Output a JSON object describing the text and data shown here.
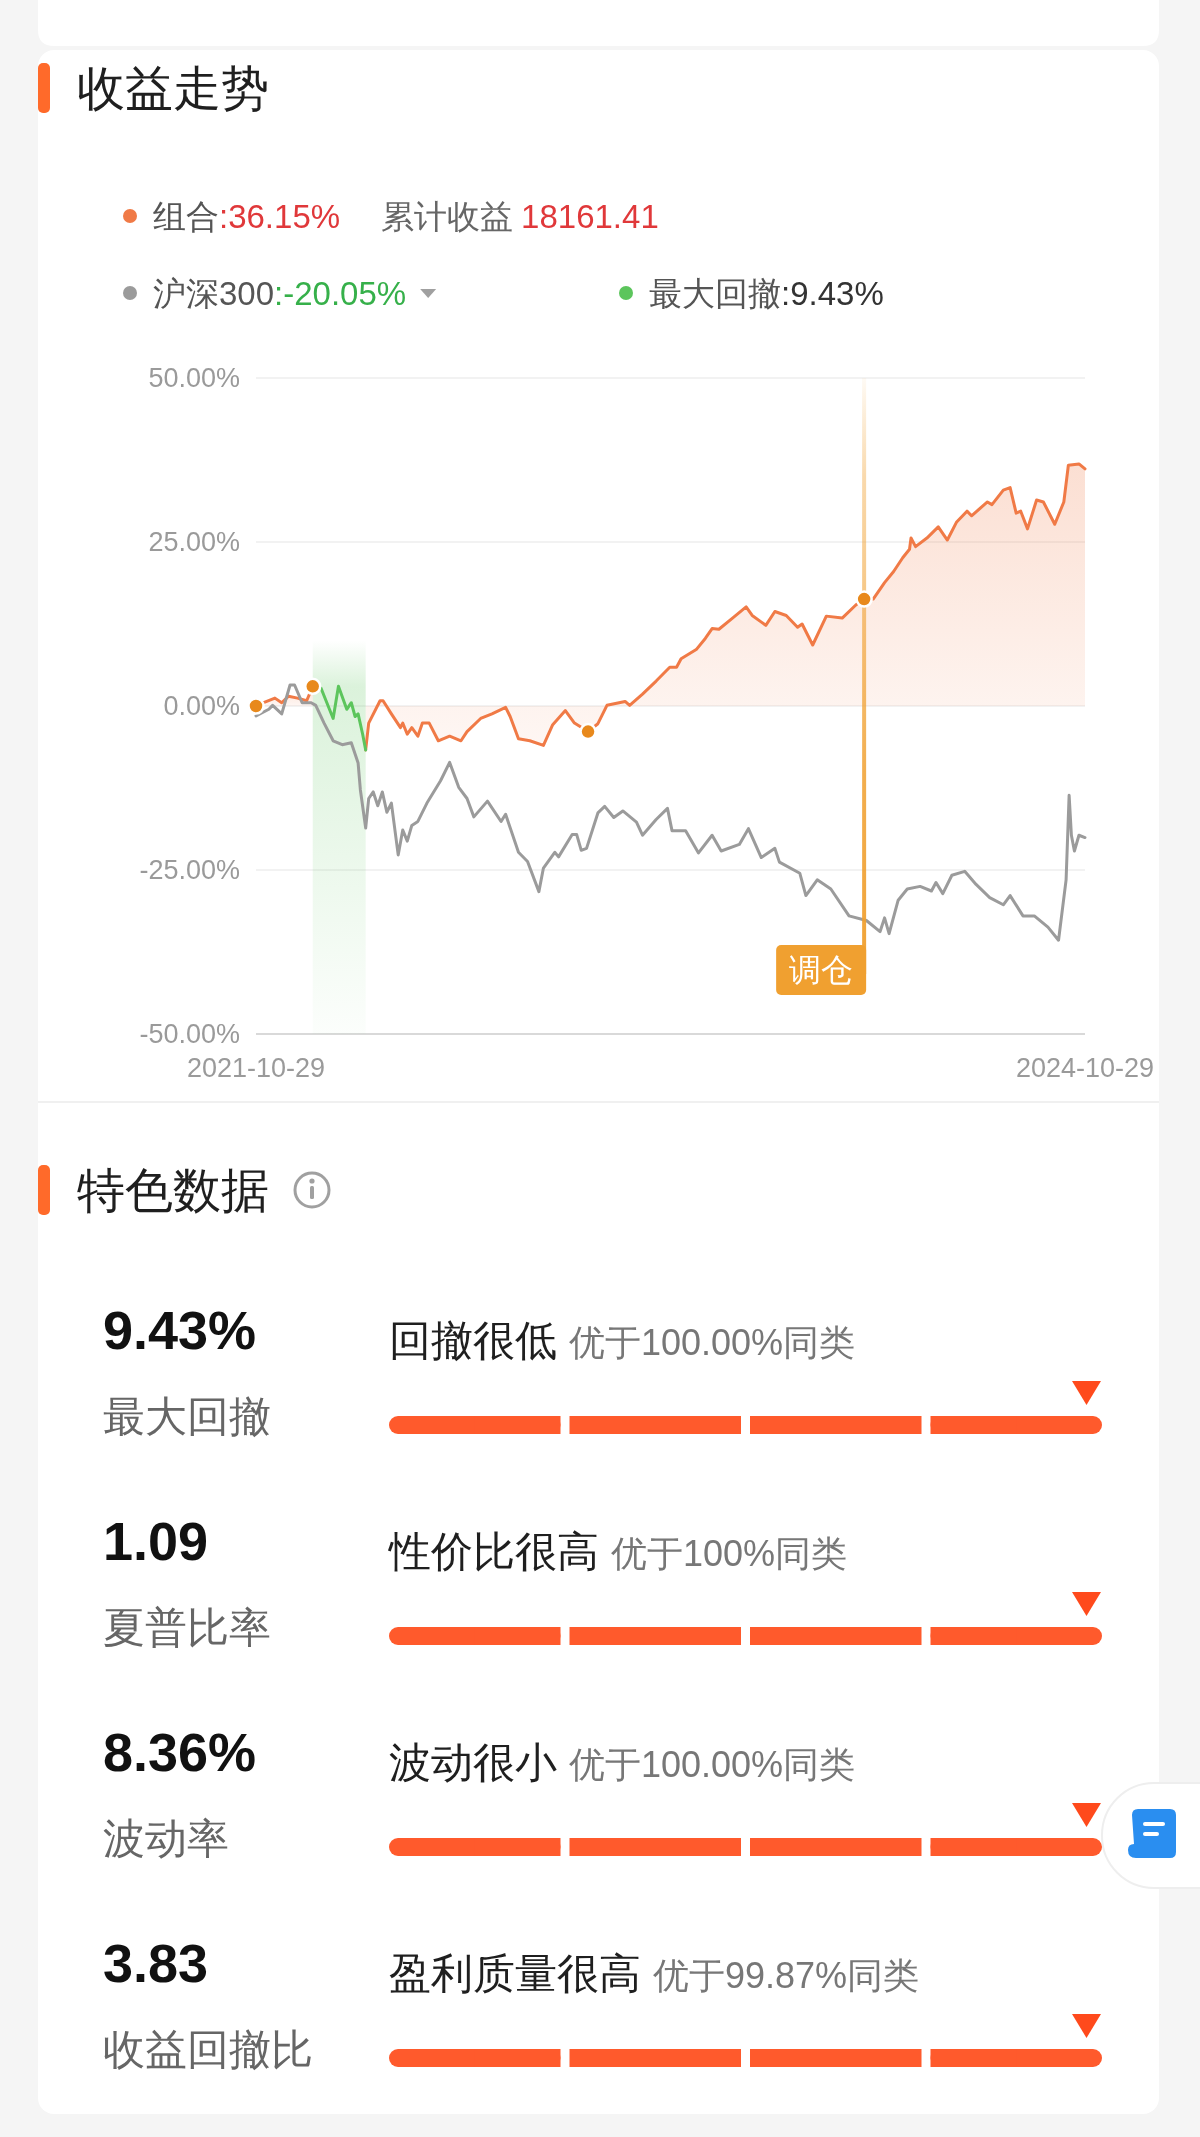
{
  "chart_data": [
    {
      "type": "line",
      "title": "收益走势",
      "series": [
        {
          "name": "组合",
          "type": "area",
          "color": "#f07a46",
          "x": [
            "2021-10-29",
            "2021-11-08",
            "2021-11-23",
            "2021-12-02",
            "2021-12-11",
            "2021-12-23",
            "2022-01-04",
            "2022-01-12",
            "2022-02-15",
            "2022-03-23",
            "2022-03-27",
            "2022-04-11",
            "2022-04-15",
            "2022-04-26",
            "2022-05-08",
            "2022-05-11",
            "2022-05-17",
            "2022-05-23",
            "2022-05-31",
            "2022-06-06",
            "2022-06-15",
            "2022-06-27",
            "2022-07-12",
            "2022-07-27",
            "2022-08-04",
            "2022-08-22",
            "2022-09-06",
            "2022-09-24",
            "2022-09-30",
            "2022-10-11",
            "2022-10-26",
            "2022-11-13",
            "2022-11-25",
            "2022-12-12",
            "2022-12-24",
            "2023-01-11",
            "2023-01-24",
            "2023-02-05",
            "2023-03-01",
            "2023-03-07",
            "2023-03-24",
            "2023-04-11",
            "2023-04-29",
            "2023-05-08",
            "2023-05-14",
            "2023-06-03",
            "2023-06-15",
            "2023-06-24",
            "2023-07-03",
            "2023-07-21",
            "2023-08-08",
            "2023-08-16",
            "2023-09-03",
            "2023-09-15",
            "2023-09-30",
            "2023-10-15",
            "2023-10-21",
            "2023-11-04",
            "2023-11-22",
            "2023-12-13",
            "2023-12-31",
            "2024-01-11",
            "2024-01-23",
            "2024-02-07",
            "2024-02-19",
            "2024-03-02",
            "2024-03-11",
            "2024-03-13",
            "2024-03-19",
            "2024-04-03",
            "2024-04-18",
            "2024-04-30",
            "2024-05-12",
            "2024-05-26",
            "2024-06-01",
            "2024-06-22",
            "2024-06-28",
            "2024-07-13",
            "2024-07-22",
            "2024-07-30",
            "2024-08-05",
            "2024-08-14",
            "2024-08-26",
            "2024-09-04",
            "2024-09-19",
            "2024-10-01",
            "2024-10-07",
            "2024-10-21",
            "2024-10-29"
          ],
          "values": [
            0,
            0.5,
            1.2,
            0.5,
            1.5,
            1.2,
            0.8,
            3.0,
            null,
            -6.7,
            -2.6,
            0.8,
            0.8,
            -1.2,
            -3.3,
            -2.6,
            -4.3,
            -3.3,
            -4.6,
            -2.6,
            -2.6,
            -5.3,
            -4.6,
            -5.3,
            -3.9,
            -1.9,
            -1.2,
            -0.2,
            -1.6,
            -5.0,
            -5.3,
            -6.0,
            -2.9,
            -0.7,
            -2.6,
            -3.9,
            -2.7,
            0.1,
            0.7,
            0.1,
            1.8,
            3.8,
            5.9,
            5.9,
            7.2,
            8.6,
            10.3,
            11.8,
            11.7,
            13.4,
            15.1,
            13.8,
            12.3,
            14.4,
            13.8,
            12.0,
            12.5,
            9.3,
            13.7,
            13.4,
            15.4,
            16.3,
            16.3,
            18.8,
            20.5,
            22.6,
            23.9,
            25.6,
            24.3,
            25.6,
            27.3,
            25.3,
            28.0,
            29.7,
            29.0,
            31.1,
            30.7,
            32.9,
            33.3,
            29.4,
            29.7,
            27.0,
            31.4,
            31.1,
            27.7,
            31.1,
            36.7,
            36.9,
            36.15
          ]
        },
        {
          "name": "沪深300",
          "type": "line",
          "color": "#9b9b9b",
          "x": [
            "2021-10-29",
            "2021-11-15",
            "2021-11-20",
            "2021-12-02",
            "2021-12-13",
            "2021-12-19",
            "2021-12-29",
            "2022-01-10",
            "2022-01-16",
            "2022-01-27",
            "2022-02-08",
            "2022-02-20",
            "2022-03-04",
            "2022-03-13",
            "2022-03-16",
            "2022-03-23",
            "2022-03-27",
            "2022-04-02",
            "2022-04-08",
            "2022-04-14",
            "2022-04-20",
            "2022-04-26",
            "2022-05-05",
            "2022-05-11",
            "2022-05-17",
            "2022-05-23",
            "2022-05-31",
            "2022-06-12",
            "2022-06-30",
            "2022-07-12",
            "2022-07-24",
            "2022-08-04",
            "2022-08-13",
            "2022-08-31",
            "2022-09-18",
            "2022-09-24",
            "2022-10-11",
            "2022-10-23",
            "2022-11-07",
            "2022-11-13",
            "2022-11-28",
            "2022-12-03",
            "2022-12-21",
            "2022-12-27",
            "2023-01-02",
            "2023-01-09",
            "2023-01-24",
            "2023-02-02",
            "2023-02-14",
            "2023-02-26",
            "2023-03-16",
            "2023-03-24",
            "2023-04-11",
            "2023-04-26",
            "2023-05-02",
            "2023-05-20",
            "2023-06-06",
            "2023-06-24",
            "2023-07-06",
            "2023-07-30",
            "2023-08-11",
            "2023-08-28",
            "2023-09-15",
            "2023-09-21",
            "2023-10-18",
            "2023-10-26",
            "2023-11-10",
            "2023-11-28",
            "2023-12-22",
            "2024-01-14",
            "2024-02-01",
            "2024-02-07",
            "2024-02-13",
            "2024-02-25",
            "2024-03-08",
            "2024-03-25",
            "2024-04-09",
            "2024-04-15",
            "2024-04-24",
            "2024-05-06",
            "2024-05-23",
            "2024-06-07",
            "2024-06-25",
            "2024-07-13",
            "2024-07-22",
            "2024-08-08",
            "2024-08-23",
            "2024-09-10",
            "2024-09-24",
            "2024-10-04",
            "2024-10-08",
            "2024-10-11",
            "2024-10-15",
            "2024-10-21",
            "2024-10-29"
          ],
          "values": [
            -1.5,
            -0.5,
            0.1,
            -1.2,
            3.2,
            3.2,
            0.5,
            0.5,
            0.1,
            -2.6,
            -5.3,
            -5.9,
            -5.6,
            -8.7,
            -12.8,
            -18.6,
            -14.1,
            -13.1,
            -15.2,
            -13.1,
            -16.2,
            -14.8,
            -22.7,
            -18.9,
            -20.6,
            -18.2,
            -17.6,
            -14.8,
            -11.4,
            -8.6,
            -12.4,
            -14.1,
            -16.9,
            -14.5,
            -17.6,
            -16.5,
            -22.3,
            -23.7,
            -28.3,
            -24.7,
            -22.3,
            -23.0,
            -19.6,
            -19.6,
            -22.0,
            -21.7,
            -16.3,
            -15.3,
            -17.0,
            -16.0,
            -17.7,
            -19.7,
            -17.3,
            -15.6,
            -19.0,
            -19.0,
            -22.4,
            -19.7,
            -22.1,
            -21.1,
            -18.7,
            -23.1,
            -21.7,
            -23.8,
            -25.5,
            -28.9,
            -26.5,
            -27.9,
            -32.0,
            -32.7,
            -34.4,
            -32.3,
            -34.7,
            -29.6,
            -27.9,
            -27.5,
            -28.2,
            -26.9,
            -28.6,
            -25.8,
            -25.2,
            -27.2,
            -29.2,
            -30.3,
            -28.9,
            -32.0,
            -32.0,
            -33.7,
            -35.7,
            -26.5,
            -13.6,
            -19.7,
            -22.1,
            -19.7,
            -20.05
          ]
        },
        {
          "name": "最大回撤",
          "type": "line",
          "color": "#5cc55c",
          "x": [
            "2022-01-12",
            "2022-01-23",
            "2022-02-08",
            "2022-02-15",
            "2022-02-26",
            "2022-03-04",
            "2022-03-09",
            "2022-03-13",
            "2022-03-19",
            "2022-03-23"
          ],
          "values": [
            3.0,
            2.7,
            -1.9,
            3.0,
            -0.5,
            0.5,
            -1.6,
            -1.2,
            -4.3,
            -6.7
          ]
        },
        {
          "type": "scatter",
          "color": "#e8891c",
          "marker": "circle",
          "x": [
            "2021-10-29",
            "2022-01-12",
            "2023-01-11",
            "2024-01-11"
          ],
          "values": [
            0,
            3.0,
            -3.9,
            16.3
          ]
        }
      ],
      "xlim": [
        "2021-10-29",
        "2024-10-29"
      ],
      "xticks": [
        "2021-10-29",
        "2024-10-29"
      ],
      "ylim": [
        -50,
        50
      ],
      "yticks": [
        {
          "value": -50,
          "label": "-50.00%"
        },
        {
          "value": -25,
          "label": "-25.00%"
        },
        {
          "value": 0,
          "label": "0.00%"
        },
        {
          "value": 25,
          "label": "25.00%"
        },
        {
          "value": 50,
          "label": "50.00%"
        }
      ],
      "grid": "y",
      "legend": "top",
      "bands": [
        {
          "axis": "x",
          "from": "2022-01-12",
          "to": "2022-03-23",
          "color": "#5cc55c"
        }
      ],
      "ref_lines": [
        {
          "axis": "x",
          "value": "2024-01-11",
          "label": "调仓",
          "color": "#f0a030"
        }
      ],
      "annotations": [
        ":36.15%",
        ":-20.05%",
        ":9.43%",
        "累计收益",
        "18161.41"
      ]
    },
    {
      "type": "other",
      "title": "特色数据",
      "annotations": [
        "9.43%",
        "最大回撤",
        "回撤很低",
        "优于100.00%同类",
        "1.09",
        "夏普比率",
        "性价比很高",
        "优于100%同类",
        "8.36%",
        "波动率",
        "波动很小",
        "优于100.00%同类",
        "3.83",
        "收益回撤比",
        "盈利质量很高",
        "优于99.87%同类"
      ]
    }
  ]
}
